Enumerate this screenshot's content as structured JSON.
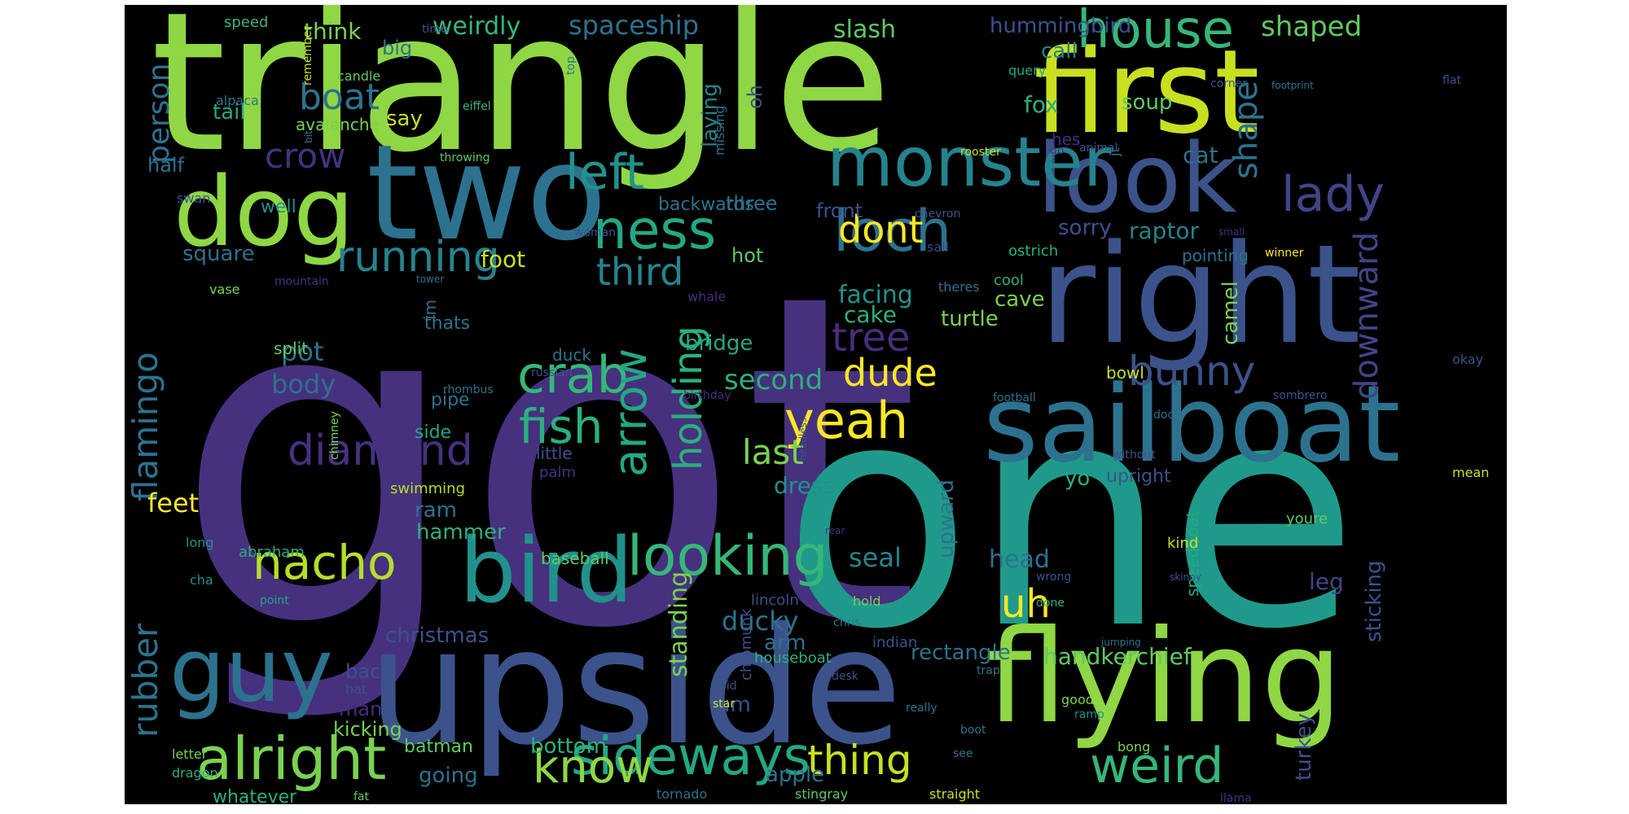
{
  "background": "#000000",
  "colormap": "viridis",
  "words": [
    {
      "text": "got",
      "color": "#46317e"
    },
    {
      "text": "triangle",
      "color": "#8fd744"
    },
    {
      "text": "one",
      "color": "#1f9a8a"
    },
    {
      "text": "upside",
      "color": "#3b528b"
    },
    {
      "text": "first",
      "color": "#c8e020"
    },
    {
      "text": "two",
      "color": "#2c728e"
    },
    {
      "text": "right",
      "color": "#3b528b"
    },
    {
      "text": "flying",
      "color": "#8fd744"
    },
    {
      "text": "sailboat",
      "color": "#2c728e"
    },
    {
      "text": "look",
      "color": "#3b528b"
    },
    {
      "text": "bird",
      "color": "#21918c"
    },
    {
      "text": "monster",
      "color": "#25838e"
    },
    {
      "text": "dog",
      "color": "#8fd744"
    },
    {
      "text": "guy",
      "color": "#2c728e"
    },
    {
      "text": "alright",
      "color": "#7ad151"
    },
    {
      "text": "sideways",
      "color": "#22a884"
    },
    {
      "text": "looking",
      "color": "#35b779"
    },
    {
      "text": "house",
      "color": "#35b779"
    },
    {
      "text": "loch",
      "color": "#2c728e"
    },
    {
      "text": "ness",
      "color": "#22a884"
    },
    {
      "text": "left",
      "color": "#21918c"
    },
    {
      "text": "lady",
      "color": "#414487"
    },
    {
      "text": "running",
      "color": "#25838e"
    },
    {
      "text": "diamond",
      "color": "#46317e"
    },
    {
      "text": "yeah",
      "color": "#fde725"
    },
    {
      "text": "crab",
      "color": "#35b779"
    },
    {
      "text": "fish",
      "color": "#2ab07f"
    },
    {
      "text": "nacho",
      "color": "#b5de2b"
    },
    {
      "text": "weird",
      "color": "#35b779"
    },
    {
      "text": "know",
      "color": "#8fd744"
    },
    {
      "text": "thing",
      "color": "#c8e020"
    },
    {
      "text": "tree",
      "color": "#472d7b"
    },
    {
      "text": "arrow",
      "color": "#22a884"
    },
    {
      "text": "holding",
      "color": "#2ab07f"
    },
    {
      "text": "bunny",
      "color": "#3b528b"
    },
    {
      "text": "flamingo",
      "color": "#2c728e"
    },
    {
      "text": "rubber",
      "color": "#2c728e"
    },
    {
      "text": "third",
      "color": "#25838e"
    },
    {
      "text": "dont",
      "color": "#fde725"
    },
    {
      "text": "dude",
      "color": "#fde725"
    },
    {
      "text": "uh",
      "color": "#fde725"
    },
    {
      "text": "last",
      "color": "#7ad151"
    },
    {
      "text": "boat",
      "color": "#2c728e"
    },
    {
      "text": "person",
      "color": "#2c728e"
    },
    {
      "text": "crow",
      "color": "#46317e"
    },
    {
      "text": "shape",
      "color": "#2c728e"
    },
    {
      "text": "downward",
      "color": "#414487"
    },
    {
      "text": "shaped",
      "color": "#5ec962"
    },
    {
      "text": "spaceship",
      "color": "#2c728e"
    },
    {
      "text": "weirdly",
      "color": "#35b779"
    },
    {
      "text": "think",
      "color": "#7ad151"
    },
    {
      "text": "slash",
      "color": "#5ec962"
    },
    {
      "text": "hummingbird",
      "color": "#3b528b"
    },
    {
      "text": "call",
      "color": "#25838e"
    },
    {
      "text": "second",
      "color": "#2ab07f"
    },
    {
      "text": "body",
      "color": "#2c728e"
    },
    {
      "text": "pot",
      "color": "#2c728e"
    },
    {
      "text": "ducky",
      "color": "#2c728e"
    },
    {
      "text": "head",
      "color": "#2c728e"
    },
    {
      "text": "seal",
      "color": "#25838e"
    },
    {
      "text": "standing",
      "color": "#7ad151"
    },
    {
      "text": "square",
      "color": "#2c728e"
    },
    {
      "text": "feet",
      "color": "#fde725"
    },
    {
      "text": "foot",
      "color": "#c8e020"
    },
    {
      "text": "dress",
      "color": "#21918c"
    },
    {
      "text": "camel",
      "color": "#7ad151"
    },
    {
      "text": "raptor",
      "color": "#25838e"
    },
    {
      "text": "sorry",
      "color": "#3b528b"
    },
    {
      "text": "cat",
      "color": "#2c728e"
    },
    {
      "text": "soup",
      "color": "#5ec962"
    },
    {
      "text": "fox",
      "color": "#2ab07f"
    },
    {
      "text": "big",
      "color": "#2c728e"
    },
    {
      "text": "say",
      "color": "#c8e020"
    },
    {
      "text": "tail",
      "color": "#22a884"
    },
    {
      "text": "bridge",
      "color": "#22a884"
    },
    {
      "text": "christmas",
      "color": "#3b528b"
    },
    {
      "text": "handkerchief",
      "color": "#5ec962"
    },
    {
      "text": "rectangle",
      "color": "#2c728e"
    },
    {
      "text": "apple",
      "color": "#2c728e"
    },
    {
      "text": "turkey",
      "color": "#3b528b"
    },
    {
      "text": "sticking",
      "color": "#3b528b"
    },
    {
      "text": "leg",
      "color": "#414487"
    },
    {
      "text": "upward",
      "color": "#2c728e"
    },
    {
      "text": "cake",
      "color": "#2ab07f"
    },
    {
      "text": "cave",
      "color": "#7ad151"
    },
    {
      "text": "turtle",
      "color": "#7ad151"
    },
    {
      "text": "facing",
      "color": "#21918c"
    },
    {
      "text": "hot",
      "color": "#5ec962"
    },
    {
      "text": "yo",
      "color": "#2ab07f"
    },
    {
      "text": "um",
      "color": "#3b528b"
    },
    {
      "text": "arm",
      "color": "#2c728e"
    },
    {
      "text": "man",
      "color": "#472d7b"
    },
    {
      "text": "going",
      "color": "#2c728e"
    },
    {
      "text": "bottom",
      "color": "#2ab07f"
    },
    {
      "text": "hammer",
      "color": "#2ab07f"
    },
    {
      "text": "ram",
      "color": "#2c728e"
    },
    {
      "text": "three",
      "color": "#2c728e"
    },
    {
      "text": "front",
      "color": "#3b528b"
    },
    {
      "text": "hes",
      "color": "#472d7b"
    },
    {
      "text": "half",
      "color": "#2c728e"
    },
    {
      "text": "backwards",
      "color": "#2c728e"
    },
    {
      "text": "well",
      "color": "#21918c"
    },
    {
      "text": "oh",
      "color": "#3b528b"
    },
    {
      "text": "laying",
      "color": "#25838e"
    },
    {
      "text": "back",
      "color": "#3b528b"
    },
    {
      "text": "kicking",
      "color": "#7ad151"
    },
    {
      "text": "whatever",
      "color": "#2ab07f"
    },
    {
      "text": "batman",
      "color": "#5ec962"
    },
    {
      "text": "pipe",
      "color": "#2c728e"
    },
    {
      "text": "side",
      "color": "#22a884"
    },
    {
      "text": "swimming",
      "color": "#b5de2b"
    },
    {
      "text": "palm",
      "color": "#46317e"
    },
    {
      "text": "little",
      "color": "#3b528b"
    },
    {
      "text": "duck",
      "color": "#2c728e"
    },
    {
      "text": "split",
      "color": "#5ec962"
    },
    {
      "text": "thats",
      "color": "#2c728e"
    },
    {
      "text": "im",
      "color": "#2c728e"
    },
    {
      "text": "avalanche",
      "color": "#7ad151"
    },
    {
      "text": "bowl",
      "color": "#c8e020"
    },
    {
      "text": "pointing",
      "color": "#2c728e"
    },
    {
      "text": "upright",
      "color": "#3b528b"
    },
    {
      "text": "speedboat",
      "color": "#22a884"
    },
    {
      "text": "chipmunk",
      "color": "#3b528b"
    },
    {
      "text": "baseball",
      "color": "#5ec962"
    },
    {
      "text": "abraham",
      "color": "#2ab07f"
    },
    {
      "text": "lincoln",
      "color": "#3b528b"
    },
    {
      "text": "houseboat",
      "color": "#2ab07f"
    },
    {
      "text": "indian",
      "color": "#3b528b"
    },
    {
      "text": "cool",
      "color": "#2ab07f"
    },
    {
      "text": "kind",
      "color": "#c8e020"
    },
    {
      "text": "youre",
      "color": "#5ec962"
    },
    {
      "text": "mean",
      "color": "#c8e020"
    },
    {
      "text": "okay",
      "color": "#3b528b"
    },
    {
      "text": "theres",
      "color": "#2c728e"
    },
    {
      "text": "ostrich",
      "color": "#2ab07f"
    },
    {
      "text": "sail",
      "color": "#414487"
    },
    {
      "text": "chevron",
      "color": "#3b528b"
    },
    {
      "text": "winner",
      "color": "#fde725"
    },
    {
      "text": "small",
      "color": "#46317e"
    },
    {
      "text": "rooster",
      "color": "#c8e020"
    },
    {
      "text": "go",
      "color": "#472d7b"
    },
    {
      "text": "animal",
      "color": "#3b528b"
    },
    {
      "text": "jt",
      "color": "#2c728e"
    },
    {
      "text": "missing",
      "color": "#2c728e"
    },
    {
      "text": "throwing",
      "color": "#5ec962"
    },
    {
      "text": "eiffel",
      "color": "#35b779"
    },
    {
      "text": "top",
      "color": "#2c728e"
    },
    {
      "text": "candle",
      "color": "#5ec962"
    },
    {
      "text": "alpaca",
      "color": "#2c728e"
    },
    {
      "text": "speed",
      "color": "#35b779"
    },
    {
      "text": "time",
      "color": "#3b528b"
    },
    {
      "text": "remember",
      "color": "#c8e020"
    },
    {
      "text": "bit",
      "color": "#2c728e"
    },
    {
      "text": "swan",
      "color": "#3b528b"
    },
    {
      "text": "query",
      "color": "#22a884"
    },
    {
      "text": "corner",
      "color": "#3b528b"
    },
    {
      "text": "footprint",
      "color": "#2c728e"
    },
    {
      "text": "flat",
      "color": "#3b528b"
    },
    {
      "text": "woman",
      "color": "#3b528b"
    },
    {
      "text": "mountain",
      "color": "#46317e"
    },
    {
      "text": "tower",
      "color": "#2c728e"
    },
    {
      "text": "vase",
      "color": "#7ad151"
    },
    {
      "text": "whale",
      "color": "#472d7b"
    },
    {
      "text": "russian",
      "color": "#3b528b"
    },
    {
      "text": "rhombus",
      "color": "#2c728e"
    },
    {
      "text": "chimney",
      "color": "#7ad151"
    },
    {
      "text": "headless",
      "color": "#3b528b"
    },
    {
      "text": "birthday",
      "color": "#472d7b"
    },
    {
      "text": "football",
      "color": "#2c728e"
    },
    {
      "text": "sombrero",
      "color": "#3b528b"
    },
    {
      "text": "door",
      "color": "#2c728e"
    },
    {
      "text": "without",
      "color": "#3b528b"
    },
    {
      "text": "rear",
      "color": "#46317e"
    },
    {
      "text": "wrong",
      "color": "#3b528b"
    },
    {
      "text": "done",
      "color": "#2ab07f"
    },
    {
      "text": "skinny",
      "color": "#3b528b"
    },
    {
      "text": "jumping",
      "color": "#2c728e"
    },
    {
      "text": "chris",
      "color": "#2c728e"
    },
    {
      "text": "hold",
      "color": "#7ad151"
    },
    {
      "text": "trap",
      "color": "#2c728e"
    },
    {
      "text": "long",
      "color": "#21918c"
    },
    {
      "text": "cha",
      "color": "#21918c"
    },
    {
      "text": "point",
      "color": "#22a884"
    },
    {
      "text": "hat",
      "color": "#3b528b"
    },
    {
      "text": "said",
      "color": "#3b528b"
    },
    {
      "text": "desk",
      "color": "#3b528b"
    },
    {
      "text": "star",
      "color": "#c8e020"
    },
    {
      "text": "really",
      "color": "#2c728e"
    },
    {
      "text": "good",
      "color": "#7ad151"
    },
    {
      "text": "ramp",
      "color": "#21918c"
    },
    {
      "text": "bong",
      "color": "#7ad151"
    },
    {
      "text": "boot",
      "color": "#2c728e"
    },
    {
      "text": "see",
      "color": "#2c728e"
    },
    {
      "text": "letter",
      "color": "#7ad151"
    },
    {
      "text": "dragon",
      "color": "#2ab07f"
    },
    {
      "text": "fat",
      "color": "#5ec962"
    },
    {
      "text": "tornado",
      "color": "#2c728e"
    },
    {
      "text": "stingray",
      "color": "#5ec962"
    },
    {
      "text": "straight",
      "color": "#c8e020"
    },
    {
      "text": "llama",
      "color": "#46317e"
    }
  ]
}
